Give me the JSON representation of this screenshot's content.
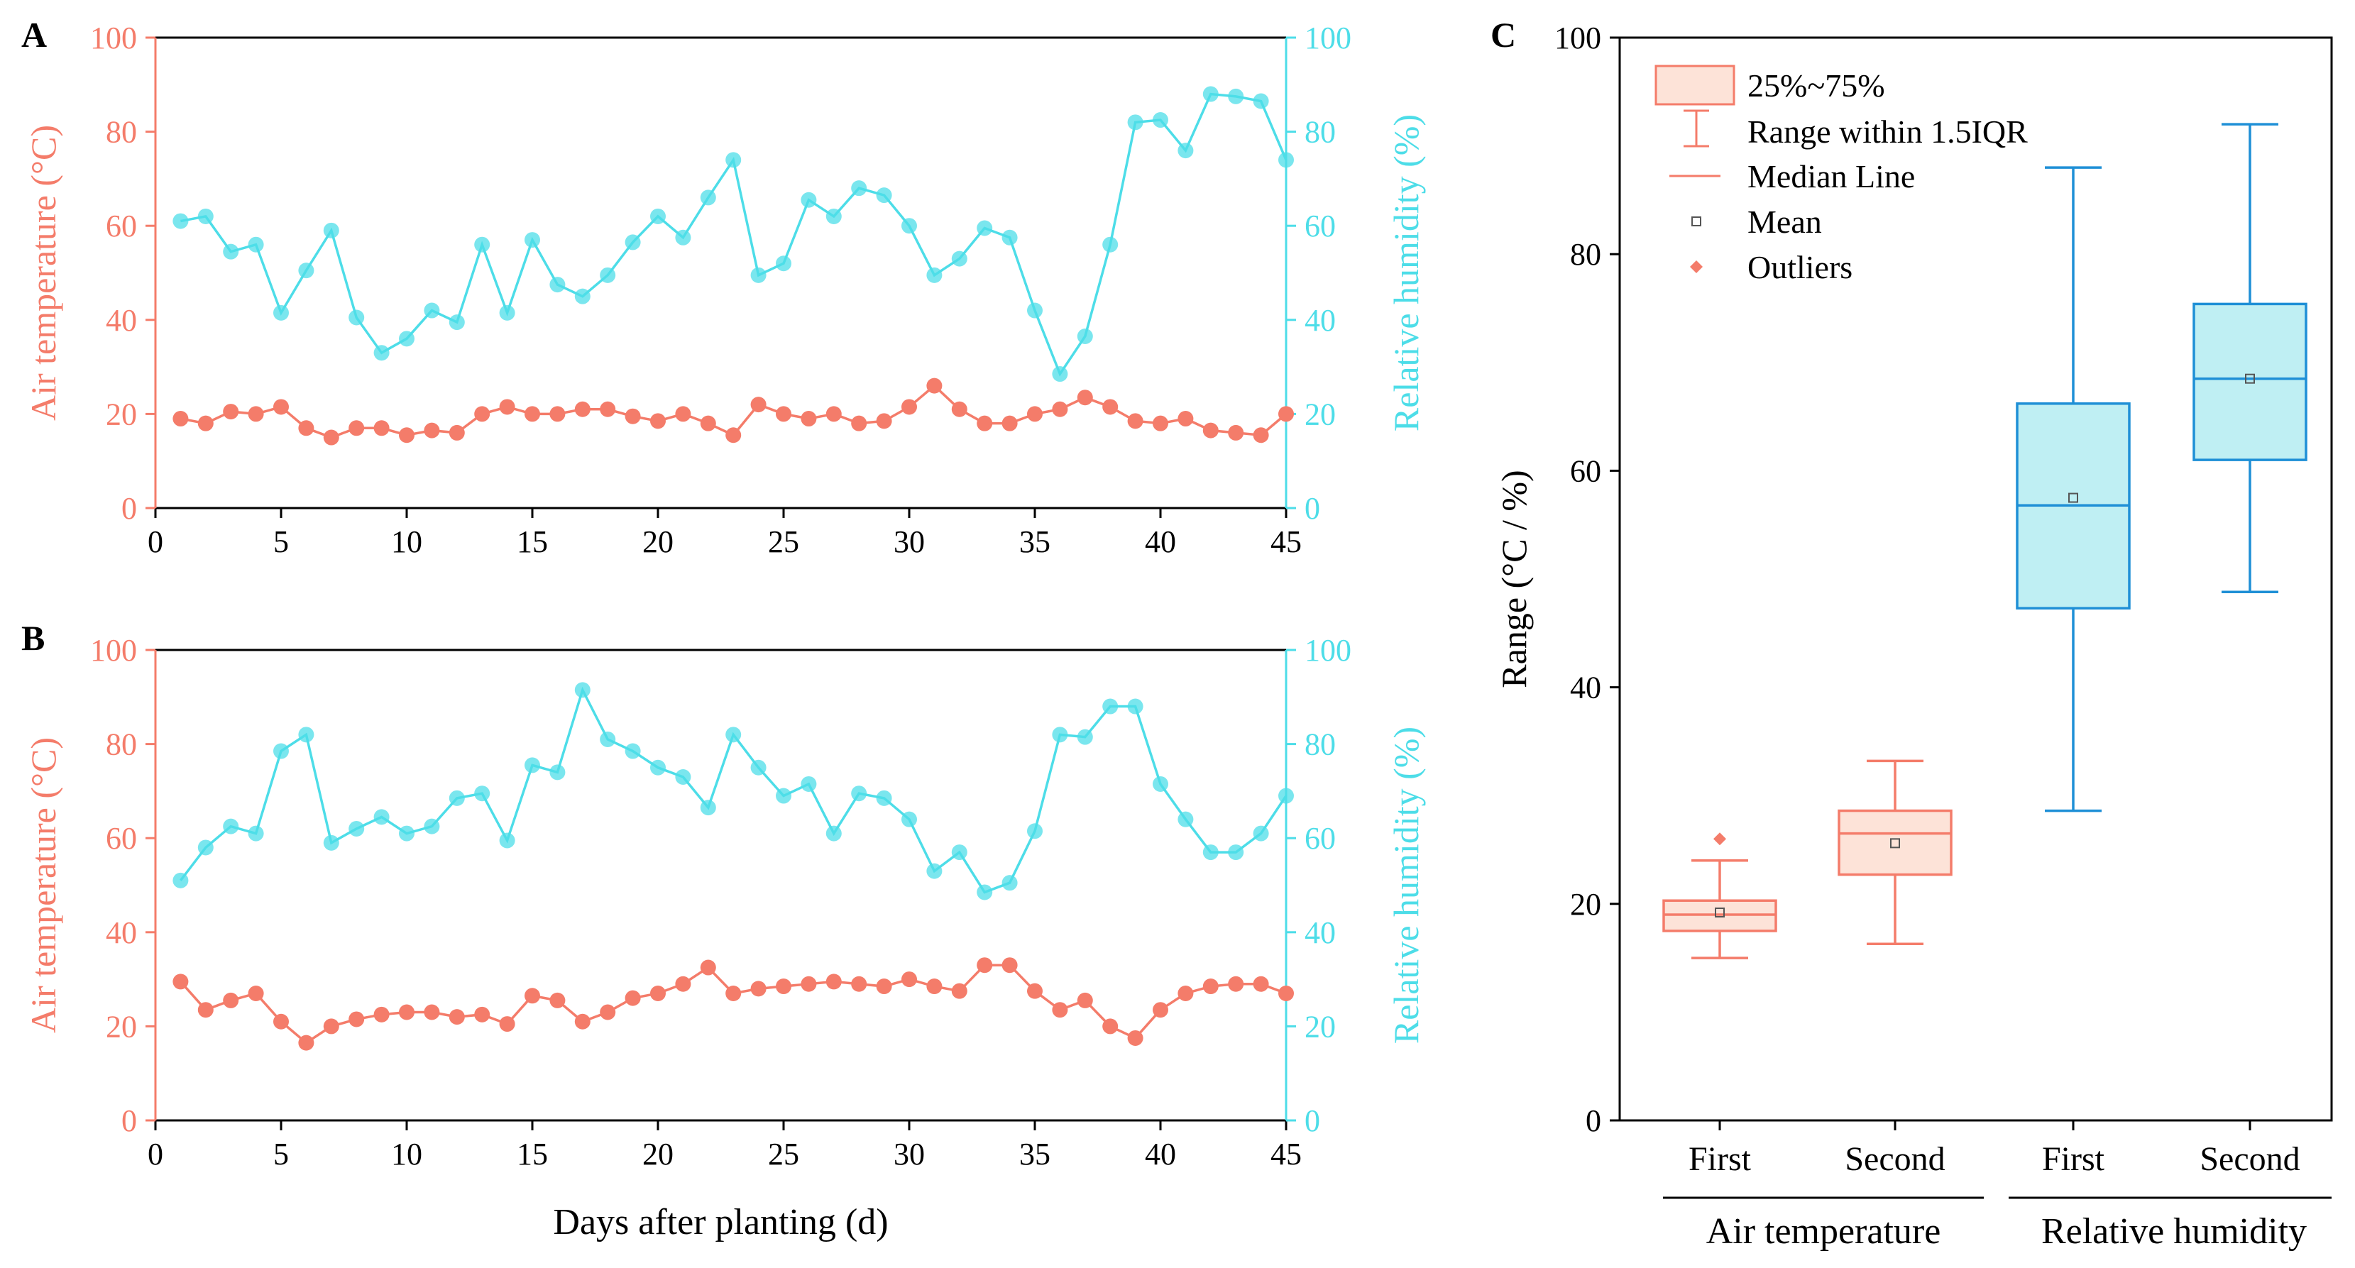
{
  "colors": {
    "temperature": "#F47C6A",
    "humidity": "#4DDDE8",
    "box_temp_line": "#F47C6A",
    "box_temp_fill": "#FDE3D8",
    "box_hum_line": "#1E8FD6",
    "box_hum_fill": "#BFEFF3",
    "axis": "#000000"
  },
  "chart_data": [
    {
      "panel": "A",
      "type": "line",
      "xlabel": "",
      "ylabel": "Air temperature (°C)",
      "y2label": "Relative humidity (%)",
      "xlim": [
        0,
        45
      ],
      "ylim": [
        0,
        100
      ],
      "y2lim": [
        0,
        100
      ],
      "xticks": [
        "0",
        "5",
        "10",
        "15",
        "20",
        "25",
        "30",
        "35",
        "40",
        "45"
      ],
      "yticks": [
        "0",
        "20",
        "40",
        "60",
        "80",
        "100"
      ],
      "y2ticks": [
        "0",
        "20",
        "40",
        "60",
        "80",
        "100"
      ],
      "x": [
        1,
        2,
        3,
        4,
        5,
        6,
        7,
        8,
        9,
        10,
        11,
        12,
        13,
        14,
        15,
        16,
        17,
        18,
        19,
        20,
        21,
        22,
        23,
        24,
        25,
        26,
        27,
        28,
        29,
        30,
        31,
        32,
        33,
        34,
        35,
        36,
        37,
        38,
        39,
        40,
        41,
        42,
        43,
        44,
        45
      ],
      "series": [
        {
          "name": "Air temperature",
          "axis": "left",
          "values": [
            19,
            18,
            20.5,
            20,
            21.5,
            17,
            15,
            17,
            17,
            15.5,
            16.5,
            16,
            20,
            21.5,
            20,
            20,
            21,
            21,
            19.5,
            18.5,
            20,
            18,
            15.5,
            22,
            20,
            19,
            20,
            18,
            18.5,
            21.5,
            26,
            21,
            18,
            18,
            20,
            21,
            23.5,
            21.5,
            18.5,
            18,
            19,
            16.5,
            16,
            15.5,
            20
          ]
        },
        {
          "name": "Relative humidity",
          "axis": "right",
          "values": [
            61,
            62,
            54.5,
            56,
            41.5,
            50.5,
            59,
            40.5,
            33,
            36,
            42,
            39.5,
            56,
            41.5,
            57,
            47.5,
            45,
            49.5,
            56.5,
            62,
            57.5,
            66,
            74,
            49.5,
            52,
            65.5,
            62,
            68,
            66.5,
            60,
            49.5,
            53,
            59.5,
            57.5,
            42,
            28.5,
            36.5,
            56,
            82,
            82.5,
            76,
            88,
            87.5,
            86.5,
            74
          ]
        }
      ]
    },
    {
      "panel": "B",
      "type": "line",
      "xlabel": "Days after planting (d)",
      "ylabel": "Air temperature (°C)",
      "y2label": "Relative humidity (%)",
      "xlim": [
        0,
        45
      ],
      "ylim": [
        0,
        100
      ],
      "y2lim": [
        0,
        100
      ],
      "xticks": [
        "0",
        "5",
        "10",
        "15",
        "20",
        "25",
        "30",
        "35",
        "40",
        "45"
      ],
      "yticks": [
        "0",
        "20",
        "40",
        "60",
        "80",
        "100"
      ],
      "y2ticks": [
        "0",
        "20",
        "40",
        "60",
        "80",
        "100"
      ],
      "x": [
        1,
        2,
        3,
        4,
        5,
        6,
        7,
        8,
        9,
        10,
        11,
        12,
        13,
        14,
        15,
        16,
        17,
        18,
        19,
        20,
        21,
        22,
        23,
        24,
        25,
        26,
        27,
        28,
        29,
        30,
        31,
        32,
        33,
        34,
        35,
        36,
        37,
        38,
        39,
        40,
        41,
        42,
        43,
        44,
        45
      ],
      "series": [
        {
          "name": "Air temperature",
          "axis": "left",
          "values": [
            29.5,
            23.5,
            25.5,
            27,
            21,
            16.5,
            20,
            21.5,
            22.5,
            23,
            23,
            22,
            22.5,
            20.5,
            26.5,
            25.5,
            21,
            23,
            26,
            27,
            29,
            32.5,
            27,
            28,
            28.5,
            29,
            29.5,
            29,
            28.5,
            30,
            28.5,
            27.5,
            33,
            33,
            27.5,
            23.5,
            25.5,
            20,
            17.5,
            23.5,
            27,
            28.5,
            29,
            29,
            27
          ]
        },
        {
          "name": "Relative humidity",
          "axis": "right",
          "values": [
            51,
            58,
            62.5,
            61,
            78.5,
            82,
            59,
            62,
            64.5,
            61,
            62.5,
            68.5,
            69.5,
            59.5,
            75.5,
            74,
            91.5,
            81,
            78.5,
            75,
            73,
            66.5,
            82,
            75,
            69,
            71.5,
            61,
            69.5,
            68.5,
            64,
            53,
            57,
            48.5,
            50.5,
            61.5,
            82,
            81.5,
            88,
            88,
            71.5,
            64,
            57,
            57,
            61,
            69
          ]
        }
      ]
    },
    {
      "panel": "C",
      "type": "box",
      "ylabel": "Range (°C / %)",
      "ylim": [
        0,
        100
      ],
      "yticks": [
        "0",
        "20",
        "40",
        "60",
        "80",
        "100"
      ],
      "categories": [
        "First",
        "Second",
        "First",
        "Second"
      ],
      "groups": [
        "Air temperature",
        "Relative humidity"
      ],
      "boxes": [
        {
          "group": "Air temperature",
          "label": "First",
          "whisker_low": 15,
          "q1": 17.5,
          "median": 19,
          "q3": 20.3,
          "whisker_high": 24,
          "mean": 19.2,
          "outliers": [
            26
          ]
        },
        {
          "group": "Air temperature",
          "label": "Second",
          "whisker_low": 16.3,
          "q1": 22.7,
          "median": 26.5,
          "q3": 28.6,
          "whisker_high": 33.2,
          "mean": 25.6,
          "outliers": []
        },
        {
          "group": "Relative humidity",
          "label": "First",
          "whisker_low": 28.6,
          "q1": 47.3,
          "median": 56.8,
          "q3": 66.2,
          "whisker_high": 88,
          "mean": 57.5,
          "outliers": []
        },
        {
          "group": "Relative humidity",
          "label": "Second",
          "whisker_low": 48.8,
          "q1": 61,
          "median": 68.5,
          "q3": 75.4,
          "whisker_high": 92,
          "mean": 68.5,
          "outliers": []
        }
      ],
      "legend": {
        "position": "top-left",
        "items": [
          "25%~75%",
          "Range within 1.5IQR",
          "Median Line",
          "Mean",
          "Outliers"
        ]
      }
    }
  ]
}
